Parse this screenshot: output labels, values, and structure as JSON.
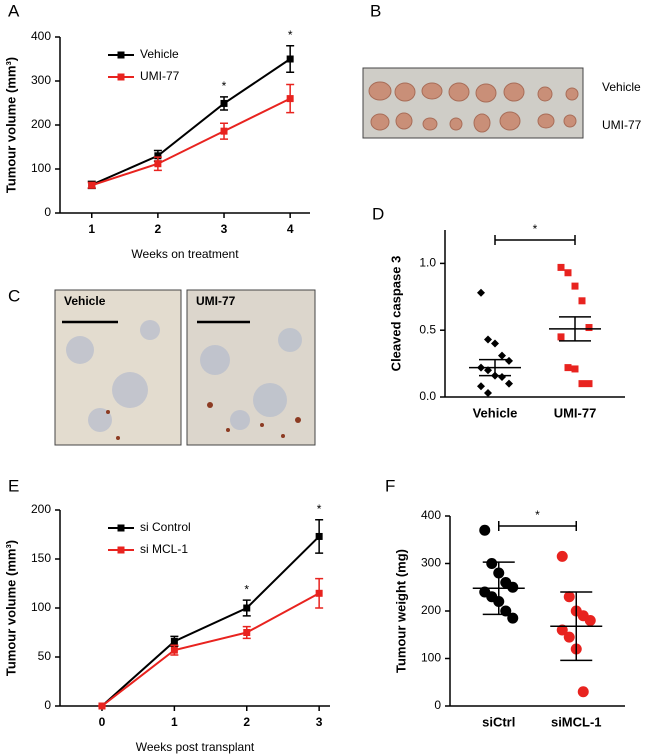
{
  "chart_data": [
    {
      "panel": "A",
      "type": "line",
      "x": [
        1,
        2,
        3,
        4
      ],
      "xlim": [
        0.52,
        4.3
      ],
      "xticks": [
        1,
        2,
        3,
        4
      ],
      "ylim": [
        0,
        400
      ],
      "yticks": [
        0,
        100,
        200,
        300,
        400
      ],
      "ylabel": "Tumour volume (mm³)",
      "xlabel": "Weeks on treatment",
      "series": [
        {
          "name": "Vehicle",
          "color": "#000000",
          "values": [
            64,
            130,
            249,
            350
          ],
          "errors": [
            8,
            12,
            15,
            30
          ]
        },
        {
          "name": "UMI-77",
          "color": "#e8231f",
          "values": [
            63,
            112,
            186,
            260
          ],
          "errors": [
            6,
            15,
            18,
            32
          ]
        }
      ],
      "annotations": [
        {
          "x": 3,
          "text": "*"
        },
        {
          "x": 4,
          "text": "*"
        }
      ]
    },
    {
      "panel": "D",
      "type": "dotplot",
      "ylim": [
        0,
        1.25
      ],
      "yticks": [
        {
          "value": 0,
          "label": "0.0"
        },
        {
          "value": 0.5,
          "label": "0.5"
        },
        {
          "value": 1,
          "label": "1.0"
        }
      ],
      "ylabel": "Cleaved caspase 3",
      "significance": "*",
      "groups": [
        {
          "name": "Vehicle",
          "color": "#000000",
          "values": [
            0.78,
            0.43,
            0.4,
            0.31,
            0.27,
            0.22,
            0.2,
            0.16,
            0.15,
            0.1,
            0.08,
            0.03
          ],
          "mean": 0.22,
          "error": 0.06
        },
        {
          "name": "UMI-77",
          "color": "#e8231f",
          "values": [
            0.97,
            0.93,
            0.83,
            0.72,
            0.52,
            0.45,
            0.22,
            0.21,
            0.1,
            0.1
          ],
          "mean": 0.51,
          "error": 0.09
        }
      ]
    },
    {
      "panel": "E",
      "type": "line",
      "x": [
        0,
        1,
        2,
        3
      ],
      "xlim": [
        -0.58,
        3.15
      ],
      "xticks": [
        0,
        1,
        2,
        3
      ],
      "ylim": [
        0,
        200
      ],
      "yticks": [
        0,
        50,
        100,
        150,
        200
      ],
      "ylabel": "Tumour volume  (mm³)",
      "xlabel": "Weeks post transplant",
      "series": [
        {
          "name": "si Control",
          "color": "#000000",
          "values": [
            0,
            66,
            100,
            173
          ],
          "errors": [
            0,
            5,
            8,
            17
          ]
        },
        {
          "name": "si MCL-1",
          "color": "#e8231f",
          "values": [
            0,
            57,
            75,
            115
          ],
          "errors": [
            0,
            5,
            6,
            15
          ]
        }
      ],
      "annotations": [
        {
          "x": 2,
          "text": "*"
        },
        {
          "x": 3,
          "text": "*"
        }
      ]
    },
    {
      "panel": "F",
      "type": "dotplot",
      "ylim": [
        0,
        400
      ],
      "yticks": [
        0,
        100,
        200,
        300,
        400
      ],
      "ylabel": "Tumour weight (mg)",
      "significance": "*",
      "groups": [
        {
          "name": "siCtrl",
          "color": "#000000",
          "values": [
            370,
            300,
            280,
            260,
            250,
            240,
            230,
            220,
            200,
            185
          ],
          "mean": 248,
          "error": 55
        },
        {
          "name": "siMCL-1",
          "color": "#e8231f",
          "values": [
            315,
            230,
            200,
            190,
            180,
            160,
            145,
            120,
            30
          ],
          "mean": 168,
          "error": 72
        }
      ]
    }
  ],
  "photos": [
    {
      "panel": "B",
      "labels": [
        "Vehicle",
        "UMI-77"
      ]
    },
    {
      "panel": "C",
      "labels": [
        "Vehicle",
        "UMI-77"
      ]
    }
  ]
}
